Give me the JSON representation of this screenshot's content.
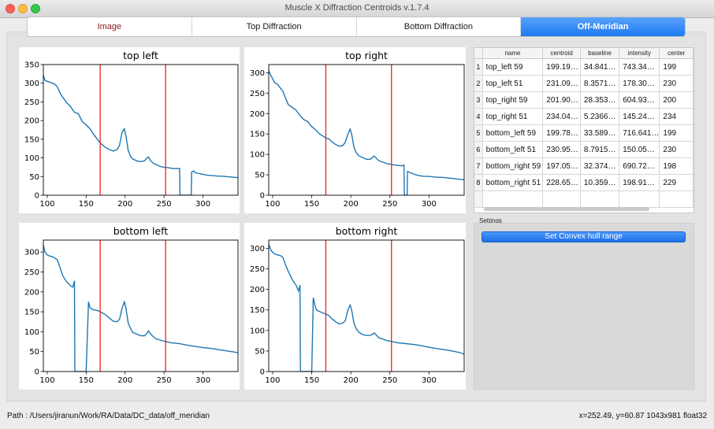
{
  "window": {
    "title": "Muscle X Diffraction Centroids v.1.7.4"
  },
  "tabs": [
    {
      "label": "Image",
      "active": false
    },
    {
      "label": "Top Diffraction",
      "active": false
    },
    {
      "label": "Bottom Diffraction",
      "active": false
    },
    {
      "label": "Off-Meridian",
      "active": true
    }
  ],
  "colors": {
    "line": "#1f77b4",
    "marker": "#e8231d",
    "accent": "#1d7af2"
  },
  "chart_data": [
    {
      "type": "line",
      "title": "top left",
      "xlim": [
        95,
        345
      ],
      "ylim": [
        0,
        350
      ],
      "xticks": [
        100,
        150,
        200,
        250,
        300
      ],
      "yticks": [
        0,
        50,
        100,
        150,
        200,
        250,
        300,
        350
      ],
      "vlines": [
        168,
        252
      ],
      "series": [
        {
          "x": [
            95,
            97,
            100,
            103,
            107,
            110,
            113,
            117,
            120,
            125,
            130,
            135,
            140,
            145,
            148,
            150,
            155,
            160,
            165,
            168,
            172,
            175,
            180,
            185,
            190,
            193,
            196,
            199,
            201,
            204,
            207,
            210,
            215,
            220,
            225,
            228,
            230,
            233,
            236,
            240,
            245,
            250,
            255,
            260,
            265,
            270,
            270.5,
            275,
            280,
            285,
            285.5,
            288,
            290,
            295,
            300,
            305,
            310,
            315,
            320,
            325,
            330,
            335,
            340,
            345
          ],
          "y": [
            322,
            308,
            305,
            303,
            300,
            297,
            290,
            272,
            262,
            248,
            237,
            222,
            218,
            197,
            192,
            188,
            178,
            162,
            148,
            140,
            133,
            128,
            122,
            118,
            123,
            135,
            168,
            178,
            160,
            120,
            104,
            97,
            92,
            90,
            92,
            100,
            102,
            92,
            86,
            82,
            77,
            75,
            74,
            72,
            71,
            72,
            0,
            0,
            0,
            0,
            62,
            65,
            60,
            58,
            56,
            54,
            53,
            52,
            51,
            51,
            50,
            49,
            48,
            47
          ]
        }
      ]
    },
    {
      "type": "line",
      "title": "top right",
      "xlim": [
        95,
        345
      ],
      "ylim": [
        0,
        320
      ],
      "xticks": [
        100,
        150,
        200,
        250,
        300
      ],
      "yticks": [
        0,
        50,
        100,
        150,
        200,
        250,
        300
      ],
      "vlines": [
        168,
        252
      ],
      "series": [
        {
          "x": [
            95,
            98,
            100,
            103,
            106,
            110,
            113,
            116,
            120,
            125,
            130,
            135,
            140,
            145,
            148,
            150,
            155,
            160,
            165,
            168,
            172,
            175,
            180,
            185,
            190,
            193,
            196,
            199,
            201,
            204,
            207,
            210,
            215,
            220,
            225,
            228,
            230,
            233,
            236,
            240,
            245,
            250,
            255,
            260,
            265,
            268,
            268.5,
            272,
            272.5,
            275,
            280,
            285,
            290,
            295,
            300,
            305,
            310,
            315,
            320,
            325,
            330,
            335,
            340,
            345
          ],
          "y": [
            305,
            292,
            285,
            275,
            272,
            262,
            255,
            240,
            222,
            215,
            208,
            195,
            185,
            180,
            172,
            168,
            160,
            150,
            144,
            140,
            138,
            132,
            125,
            120,
            122,
            130,
            148,
            162,
            150,
            118,
            104,
            97,
            92,
            88,
            88,
            93,
            96,
            90,
            84,
            82,
            78,
            76,
            74,
            73,
            72,
            74,
            0,
            0,
            58,
            56,
            52,
            49,
            47,
            46,
            46,
            45,
            44,
            44,
            43,
            42,
            41,
            40,
            39,
            38
          ]
        }
      ]
    },
    {
      "type": "line",
      "title": "bottom left",
      "xlim": [
        95,
        345
      ],
      "ylim": [
        0,
        330
      ],
      "xticks": [
        100,
        150,
        200,
        250,
        300
      ],
      "yticks": [
        0,
        50,
        100,
        150,
        200,
        250,
        300
      ],
      "vlines": [
        168,
        252
      ],
      "series": [
        {
          "x": [
            95,
            97,
            100,
            103,
            107,
            110,
            113,
            117,
            120,
            125,
            130,
            133,
            135,
            135.5,
            150,
            153,
            155,
            158,
            160,
            165,
            168,
            172,
            175,
            180,
            185,
            190,
            193,
            196,
            199,
            201,
            204,
            207,
            210,
            215,
            220,
            225,
            228,
            230,
            233,
            236,
            240,
            245,
            250,
            255,
            260,
            270,
            280,
            290,
            300,
            310,
            320,
            330,
            340,
            345
          ],
          "y": [
            318,
            300,
            293,
            290,
            288,
            285,
            280,
            258,
            240,
            225,
            215,
            212,
            228,
            0,
            0,
            175,
            160,
            156,
            155,
            153,
            150,
            146,
            142,
            134,
            126,
            125,
            132,
            158,
            175,
            160,
            122,
            108,
            98,
            94,
            90,
            90,
            95,
            102,
            94,
            88,
            82,
            79,
            76,
            74,
            72,
            70,
            66,
            63,
            60,
            58,
            55,
            52,
            49,
            47
          ]
        }
      ]
    },
    {
      "type": "line",
      "title": "bottom right",
      "xlim": [
        95,
        345
      ],
      "ylim": [
        0,
        320
      ],
      "xticks": [
        100,
        150,
        200,
        250,
        300
      ],
      "yticks": [
        0,
        50,
        100,
        150,
        200,
        250,
        300
      ],
      "vlines": [
        168,
        252
      ],
      "series": [
        {
          "x": [
            95,
            98,
            100,
            103,
            106,
            110,
            113,
            116,
            120,
            125,
            130,
            133,
            135,
            135.5,
            150,
            152,
            154,
            156,
            158,
            160,
            165,
            168,
            172,
            175,
            180,
            185,
            190,
            193,
            196,
            199,
            201,
            204,
            207,
            210,
            215,
            220,
            225,
            228,
            230,
            233,
            236,
            240,
            245,
            250,
            255,
            260,
            270,
            280,
            290,
            300,
            310,
            320,
            330,
            340,
            345
          ],
          "y": [
            310,
            295,
            290,
            286,
            284,
            282,
            278,
            262,
            244,
            224,
            210,
            196,
            210,
            0,
            0,
            180,
            162,
            150,
            148,
            146,
            142,
            140,
            136,
            130,
            122,
            116,
            118,
            124,
            148,
            162,
            150,
            118,
            104,
            96,
            90,
            88,
            88,
            91,
            94,
            88,
            82,
            80,
            76,
            74,
            72,
            70,
            68,
            66,
            63,
            59,
            56,
            53,
            50,
            46,
            42
          ]
        }
      ]
    }
  ],
  "table": {
    "headers": [
      "",
      "name",
      "centroid",
      "baseline",
      "intensity",
      "center"
    ],
    "rows": [
      [
        "1",
        "top_left 59",
        "199.19…",
        "34.841…",
        "743.34…",
        "199"
      ],
      [
        "2",
        "top_left 51",
        "231.09…",
        "8.3571…",
        "178.30…",
        "230"
      ],
      [
        "3",
        "top_right 59",
        "201.90…",
        "28.353…",
        "604.93…",
        "200"
      ],
      [
        "4",
        "top_right 51",
        "234.04…",
        "5.2366…",
        "145.24…",
        "234"
      ],
      [
        "5",
        "bottom_left 59",
        "199.78…",
        "33.589…",
        "716.641…",
        "199"
      ],
      [
        "6",
        "bottom_left 51",
        "230.95…",
        "8.7915…",
        "150.05…",
        "230"
      ],
      [
        "7",
        "bottom_right 59",
        "197.05…",
        "32.374…",
        "690.72…",
        "198"
      ],
      [
        "8",
        "bottom_right 51",
        "228.65…",
        "10.359…",
        "198.91…",
        "229"
      ]
    ]
  },
  "settings": {
    "label": "Settings",
    "button": "Set Convex hull range"
  },
  "status": {
    "path": "Path : /Users/jiranun/Work/RA/Data/DC_data/off_meridian",
    "info": "x=252.49, y=60.87  1043x981 float32"
  }
}
